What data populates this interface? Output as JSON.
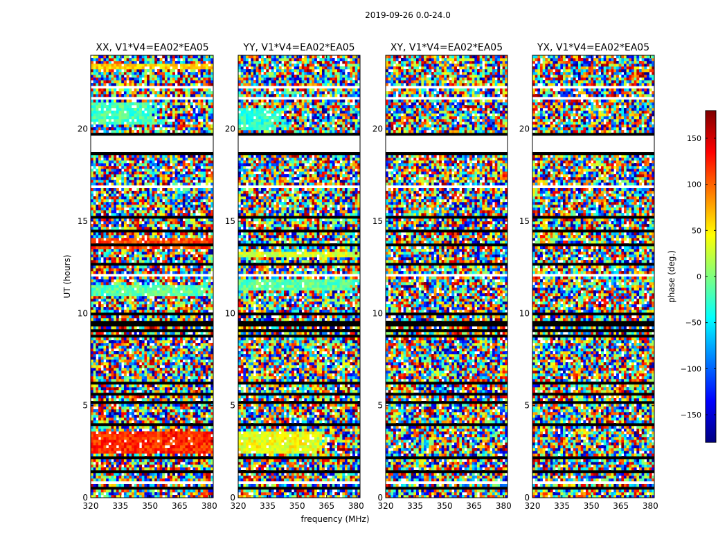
{
  "chart_data": {
    "type": "heatmap",
    "title": "2019-09-26 0.0-24.0",
    "xlabel": "frequency (MHz)",
    "ylabel": "UT (hours)",
    "xlim": [
      320,
      382
    ],
    "ylim": [
      0,
      24
    ],
    "xticks": [
      "320",
      "335",
      "350",
      "365",
      "380"
    ],
    "xtick_values": [
      320,
      335,
      350,
      365,
      380
    ],
    "yticks": [
      "0",
      "5",
      "10",
      "15",
      "20"
    ],
    "ytick_values": [
      0,
      5,
      10,
      15,
      20
    ],
    "panels": [
      {
        "label": "XX, V1*V4=EA02*EA05",
        "coherent_bands": [
          {
            "t0": 20.2,
            "t1": 21.4,
            "hue": -20,
            "fade_from": 0.55
          },
          {
            "t0": 2.4,
            "t1": 3.6,
            "hue": 120,
            "fade_from": 1.0
          },
          {
            "t0": 13.5,
            "t1": 14.1,
            "hue": 110,
            "fade_from": 1.0
          },
          {
            "t0": 11.0,
            "t1": 11.6,
            "hue": -15,
            "fade_from": 1.0
          },
          {
            "t0": 23.2,
            "t1": 23.6,
            "hue": 60,
            "fade_from": 1.0
          }
        ]
      },
      {
        "label": "YY, V1*V4=EA02*EA05",
        "coherent_bands": [
          {
            "t0": 19.9,
            "t1": 21.1,
            "hue": -30,
            "fade_from": 0.35
          },
          {
            "t0": 2.4,
            "t1": 3.6,
            "hue": 40,
            "fade_from": 0.7
          },
          {
            "t0": 11.2,
            "t1": 11.8,
            "hue": -10,
            "fade_from": 1.0
          },
          {
            "t0": 13.0,
            "t1": 13.4,
            "hue": 30,
            "fade_from": 1.0
          }
        ]
      },
      {
        "label": "XY, V1*V4=EA02*EA05",
        "coherent_bands": []
      },
      {
        "label": "YX, V1*V4=EA02*EA05",
        "coherent_bands": []
      }
    ],
    "colorbar": {
      "label": "phase (deg.)",
      "range": [
        -180,
        180
      ],
      "ticks": [
        "150",
        "100",
        "50",
        "0",
        "−50",
        "−100",
        "−150"
      ],
      "tick_values": [
        150,
        100,
        50,
        0,
        -50,
        -100,
        -150
      ],
      "colormap": "jet"
    },
    "flagged_intervals": [
      [
        19.6,
        19.85
      ],
      [
        18.6,
        18.75
      ],
      [
        18.1,
        18.15
      ],
      [
        17.2,
        17.3
      ],
      [
        15.2,
        15.35
      ],
      [
        14.4,
        14.5
      ],
      [
        13.7,
        13.8
      ],
      [
        12.6,
        12.7
      ],
      [
        10.9,
        11.0
      ],
      [
        9.9,
        10.0
      ],
      [
        9.7,
        9.8
      ],
      [
        9.3,
        9.55
      ],
      [
        9.0,
        9.1
      ],
      [
        8.7,
        8.8
      ],
      [
        7.6,
        7.7
      ],
      [
        6.2,
        6.3
      ],
      [
        5.6,
        5.7
      ],
      [
        5.1,
        5.2
      ],
      [
        4.6,
        4.7
      ],
      [
        3.9,
        4.0
      ],
      [
        2.1,
        2.2
      ],
      [
        1.4,
        1.5
      ],
      [
        1.0,
        1.1
      ],
      [
        0.5,
        0.6
      ]
    ],
    "gap_intervals": [
      [
        18.75,
        19.6
      ],
      [
        22.2,
        22.35
      ],
      [
        21.6,
        21.7
      ],
      [
        16.8,
        16.9
      ],
      [
        12.0,
        12.1
      ],
      [
        7.9,
        8.0
      ],
      [
        3.7,
        3.8
      ],
      [
        0.8,
        0.9
      ]
    ]
  }
}
